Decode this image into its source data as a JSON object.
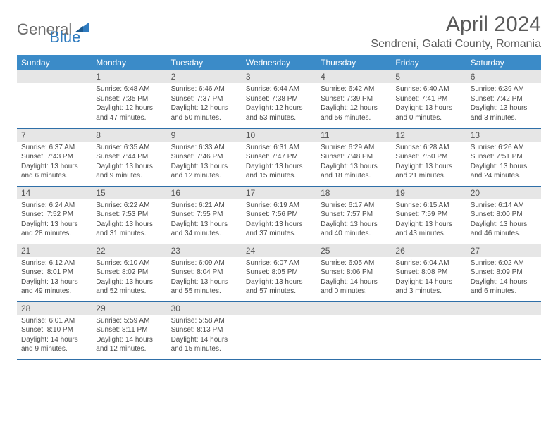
{
  "brand": {
    "part1": "General",
    "part2": "Blue"
  },
  "title": "April 2024",
  "location": "Sendreni, Galati County, Romania",
  "colors": {
    "header_bg": "#3b8bc8",
    "header_text": "#ffffff",
    "daynum_bg": "#e6e6e6",
    "daynum_text": "#555555",
    "cell_text": "#4a4a4a",
    "row_border": "#2f6fa8",
    "title_text": "#5a5a5a",
    "logo_gray": "#6b6b6b",
    "logo_blue": "#2f7bbf",
    "background": "#ffffff"
  },
  "typography": {
    "title_fontsize": 30,
    "location_fontsize": 16,
    "weekday_fontsize": 12,
    "daynum_fontsize": 12,
    "cell_fontsize": 10,
    "logo_fontsize": 22
  },
  "weekdays": [
    "Sunday",
    "Monday",
    "Tuesday",
    "Wednesday",
    "Thursday",
    "Friday",
    "Saturday"
  ],
  "weeks": [
    [
      {
        "n": "",
        "sr": "",
        "ss": "",
        "dl": ""
      },
      {
        "n": "1",
        "sr": "Sunrise: 6:48 AM",
        "ss": "Sunset: 7:35 PM",
        "dl": "Daylight: 12 hours and 47 minutes."
      },
      {
        "n": "2",
        "sr": "Sunrise: 6:46 AM",
        "ss": "Sunset: 7:37 PM",
        "dl": "Daylight: 12 hours and 50 minutes."
      },
      {
        "n": "3",
        "sr": "Sunrise: 6:44 AM",
        "ss": "Sunset: 7:38 PM",
        "dl": "Daylight: 12 hours and 53 minutes."
      },
      {
        "n": "4",
        "sr": "Sunrise: 6:42 AM",
        "ss": "Sunset: 7:39 PM",
        "dl": "Daylight: 12 hours and 56 minutes."
      },
      {
        "n": "5",
        "sr": "Sunrise: 6:40 AM",
        "ss": "Sunset: 7:41 PM",
        "dl": "Daylight: 13 hours and 0 minutes."
      },
      {
        "n": "6",
        "sr": "Sunrise: 6:39 AM",
        "ss": "Sunset: 7:42 PM",
        "dl": "Daylight: 13 hours and 3 minutes."
      }
    ],
    [
      {
        "n": "7",
        "sr": "Sunrise: 6:37 AM",
        "ss": "Sunset: 7:43 PM",
        "dl": "Daylight: 13 hours and 6 minutes."
      },
      {
        "n": "8",
        "sr": "Sunrise: 6:35 AM",
        "ss": "Sunset: 7:44 PM",
        "dl": "Daylight: 13 hours and 9 minutes."
      },
      {
        "n": "9",
        "sr": "Sunrise: 6:33 AM",
        "ss": "Sunset: 7:46 PM",
        "dl": "Daylight: 13 hours and 12 minutes."
      },
      {
        "n": "10",
        "sr": "Sunrise: 6:31 AM",
        "ss": "Sunset: 7:47 PM",
        "dl": "Daylight: 13 hours and 15 minutes."
      },
      {
        "n": "11",
        "sr": "Sunrise: 6:29 AM",
        "ss": "Sunset: 7:48 PM",
        "dl": "Daylight: 13 hours and 18 minutes."
      },
      {
        "n": "12",
        "sr": "Sunrise: 6:28 AM",
        "ss": "Sunset: 7:50 PM",
        "dl": "Daylight: 13 hours and 21 minutes."
      },
      {
        "n": "13",
        "sr": "Sunrise: 6:26 AM",
        "ss": "Sunset: 7:51 PM",
        "dl": "Daylight: 13 hours and 24 minutes."
      }
    ],
    [
      {
        "n": "14",
        "sr": "Sunrise: 6:24 AM",
        "ss": "Sunset: 7:52 PM",
        "dl": "Daylight: 13 hours and 28 minutes."
      },
      {
        "n": "15",
        "sr": "Sunrise: 6:22 AM",
        "ss": "Sunset: 7:53 PM",
        "dl": "Daylight: 13 hours and 31 minutes."
      },
      {
        "n": "16",
        "sr": "Sunrise: 6:21 AM",
        "ss": "Sunset: 7:55 PM",
        "dl": "Daylight: 13 hours and 34 minutes."
      },
      {
        "n": "17",
        "sr": "Sunrise: 6:19 AM",
        "ss": "Sunset: 7:56 PM",
        "dl": "Daylight: 13 hours and 37 minutes."
      },
      {
        "n": "18",
        "sr": "Sunrise: 6:17 AM",
        "ss": "Sunset: 7:57 PM",
        "dl": "Daylight: 13 hours and 40 minutes."
      },
      {
        "n": "19",
        "sr": "Sunrise: 6:15 AM",
        "ss": "Sunset: 7:59 PM",
        "dl": "Daylight: 13 hours and 43 minutes."
      },
      {
        "n": "20",
        "sr": "Sunrise: 6:14 AM",
        "ss": "Sunset: 8:00 PM",
        "dl": "Daylight: 13 hours and 46 minutes."
      }
    ],
    [
      {
        "n": "21",
        "sr": "Sunrise: 6:12 AM",
        "ss": "Sunset: 8:01 PM",
        "dl": "Daylight: 13 hours and 49 minutes."
      },
      {
        "n": "22",
        "sr": "Sunrise: 6:10 AM",
        "ss": "Sunset: 8:02 PM",
        "dl": "Daylight: 13 hours and 52 minutes."
      },
      {
        "n": "23",
        "sr": "Sunrise: 6:09 AM",
        "ss": "Sunset: 8:04 PM",
        "dl": "Daylight: 13 hours and 55 minutes."
      },
      {
        "n": "24",
        "sr": "Sunrise: 6:07 AM",
        "ss": "Sunset: 8:05 PM",
        "dl": "Daylight: 13 hours and 57 minutes."
      },
      {
        "n": "25",
        "sr": "Sunrise: 6:05 AM",
        "ss": "Sunset: 8:06 PM",
        "dl": "Daylight: 14 hours and 0 minutes."
      },
      {
        "n": "26",
        "sr": "Sunrise: 6:04 AM",
        "ss": "Sunset: 8:08 PM",
        "dl": "Daylight: 14 hours and 3 minutes."
      },
      {
        "n": "27",
        "sr": "Sunrise: 6:02 AM",
        "ss": "Sunset: 8:09 PM",
        "dl": "Daylight: 14 hours and 6 minutes."
      }
    ],
    [
      {
        "n": "28",
        "sr": "Sunrise: 6:01 AM",
        "ss": "Sunset: 8:10 PM",
        "dl": "Daylight: 14 hours and 9 minutes."
      },
      {
        "n": "29",
        "sr": "Sunrise: 5:59 AM",
        "ss": "Sunset: 8:11 PM",
        "dl": "Daylight: 14 hours and 12 minutes."
      },
      {
        "n": "30",
        "sr": "Sunrise: 5:58 AM",
        "ss": "Sunset: 8:13 PM",
        "dl": "Daylight: 14 hours and 15 minutes."
      },
      {
        "n": "",
        "sr": "",
        "ss": "",
        "dl": ""
      },
      {
        "n": "",
        "sr": "",
        "ss": "",
        "dl": ""
      },
      {
        "n": "",
        "sr": "",
        "ss": "",
        "dl": ""
      },
      {
        "n": "",
        "sr": "",
        "ss": "",
        "dl": ""
      }
    ]
  ]
}
